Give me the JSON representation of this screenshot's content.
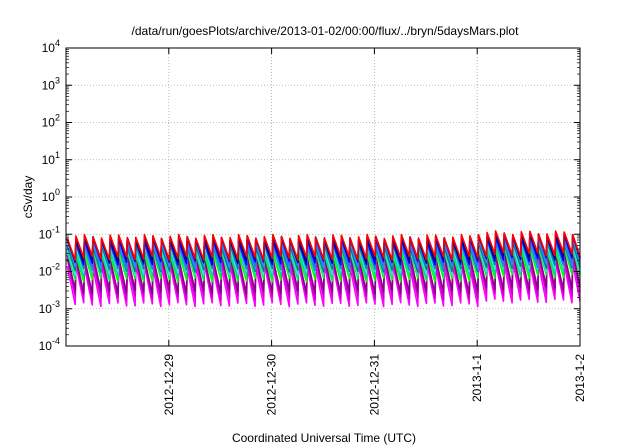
{
  "chart_data": {
    "type": "line",
    "title": "/data/run/goesPlots/archive/2013-01-02/00:00/flux/../bryn/5daysMars.plot",
    "xlabel": "Coordinated Universal Time (UTC)",
    "ylabel": "cSv/day",
    "yscale": "log",
    "ylim": [
      0.0001,
      10000
    ],
    "xlim": [
      "2012-12-28T00:00",
      "2013-01-02T00:00"
    ],
    "grid": true,
    "y_ticks": [
      {
        "base": "10",
        "exp": "-4"
      },
      {
        "base": "10",
        "exp": "-3"
      },
      {
        "base": "10",
        "exp": "-2"
      },
      {
        "base": "10",
        "exp": "-1"
      },
      {
        "base": "10",
        "exp": "0"
      },
      {
        "base": "10",
        "exp": "1"
      },
      {
        "base": "10",
        "exp": "2"
      },
      {
        "base": "10",
        "exp": "3"
      },
      {
        "base": "10",
        "exp": "4"
      }
    ],
    "x_ticks": [
      {
        "label": "2012-12-29",
        "date": "2012-12-29T00:00"
      },
      {
        "label": "2012-12-30",
        "date": "2012-12-30T00:00"
      },
      {
        "label": "2012-12-31",
        "date": "2012-12-31T00:00"
      },
      {
        "label": "2013-1-1",
        "date": "2013-01-01T00:00"
      },
      {
        "label": "2013-1-2",
        "date": "2013-01-02T00:00"
      }
    ],
    "sawtooth_period_hours": 2,
    "series": [
      {
        "color": "#ff00ff",
        "peak": 0.014,
        "trough": 0.0013
      },
      {
        "color": "#cc00cc",
        "peak": 0.02,
        "trough": 0.002
      },
      {
        "color": "#8b008b",
        "peak": 0.025,
        "trough": 0.0028
      },
      {
        "color": "#00ff00",
        "peak": 0.032,
        "trough": 0.006
      },
      {
        "color": "#00cccc",
        "peak": 0.038,
        "trough": 0.008
      },
      {
        "color": "#40e0d0",
        "peak": 0.044,
        "trough": 0.009
      },
      {
        "color": "#008080",
        "peak": 0.05,
        "trough": 0.011
      },
      {
        "color": "#1e90ff",
        "peak": 0.058,
        "trough": 0.013
      },
      {
        "color": "#4169e1",
        "peak": 0.065,
        "trough": 0.015
      },
      {
        "color": "#0000ff",
        "peak": 0.072,
        "trough": 0.017
      },
      {
        "color": "#00008b",
        "peak": 0.08,
        "trough": 0.02
      },
      {
        "color": "#ff0000",
        "peak": 0.088,
        "trough": 0.023
      }
    ]
  }
}
